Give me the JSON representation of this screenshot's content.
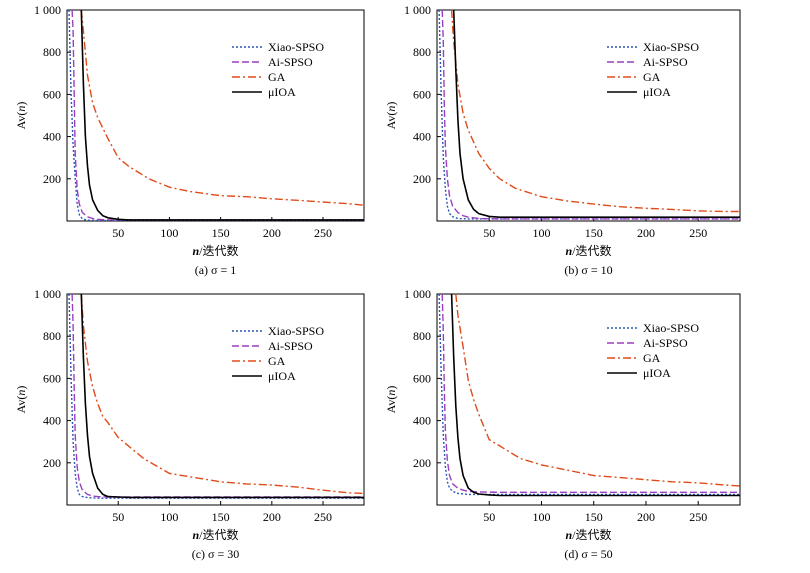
{
  "chart_data": [
    {
      "type": "line",
      "caption": "(a) σ = 1",
      "ylabel": "Av(n)",
      "xlabel": "n/迭代数",
      "xlim": [
        0,
        290
      ],
      "ylim": [
        0,
        1000
      ],
      "xticks": [
        "50",
        "100",
        "150",
        "200",
        "250"
      ],
      "yticks": [
        "200",
        "400",
        "600",
        "800",
        "1 000"
      ],
      "series": [
        {
          "name": "Xiao-SPSO",
          "color": "#2a55b8",
          "dash": "2,2",
          "x": [
            2,
            4,
            6,
            8,
            10,
            12,
            15,
            20,
            30,
            290
          ],
          "y": [
            1000,
            600,
            360,
            200,
            80,
            30,
            10,
            4,
            2,
            2
          ]
        },
        {
          "name": "Ai-SPSO",
          "color": "#9b3fc2",
          "dash": "7,3",
          "x": [
            5,
            6,
            7,
            8,
            10,
            12,
            15,
            20,
            25,
            30,
            40,
            290
          ],
          "y": [
            1000,
            900,
            600,
            320,
            150,
            80,
            40,
            20,
            12,
            8,
            5,
            5
          ]
        },
        {
          "name": "GA",
          "color": "#e04b1a",
          "dash": "8,3,2,3",
          "x": [
            14,
            16,
            20,
            25,
            30,
            40,
            50,
            60,
            70,
            80,
            100,
            120,
            150,
            175,
            200,
            225,
            250,
            275,
            290
          ],
          "y": [
            1000,
            900,
            690,
            560,
            490,
            390,
            300,
            260,
            230,
            200,
            160,
            140,
            120,
            115,
            105,
            98,
            90,
            82,
            75
          ]
        },
        {
          "name": "μIOA",
          "color": "#000000",
          "dash": "",
          "x": [
            14,
            16,
            18,
            20,
            22,
            25,
            30,
            35,
            40,
            50,
            60,
            290
          ],
          "y": [
            1000,
            650,
            400,
            260,
            170,
            100,
            50,
            25,
            15,
            8,
            5,
            5
          ]
        }
      ]
    },
    {
      "type": "line",
      "caption": "(b) σ = 10",
      "ylabel": "Av(n)",
      "xlabel": "n/迭代数",
      "xlim": [
        0,
        290
      ],
      "ylim": [
        0,
        1000
      ],
      "xticks": [
        "50",
        "100",
        "150",
        "200",
        "250"
      ],
      "yticks": [
        "200",
        "400",
        "600",
        "800",
        "1 000"
      ],
      "series": [
        {
          "name": "Xiao-SPSO",
          "color": "#2a55b8",
          "dash": "2,2",
          "x": [
            2,
            4,
            6,
            8,
            10,
            12,
            15,
            20,
            30,
            50,
            290
          ],
          "y": [
            1000,
            600,
            300,
            150,
            70,
            35,
            20,
            12,
            10,
            10,
            10
          ]
        },
        {
          "name": "Ai-SPSO",
          "color": "#9b3fc2",
          "dash": "7,3",
          "x": [
            5,
            6,
            7,
            8,
            10,
            12,
            15,
            20,
            25,
            30,
            40,
            60,
            290
          ],
          "y": [
            1000,
            850,
            550,
            350,
            200,
            120,
            70,
            40,
            25,
            18,
            12,
            10,
            10
          ]
        },
        {
          "name": "GA",
          "color": "#e04b1a",
          "dash": "8,3,2,3",
          "x": [
            14,
            16,
            20,
            25,
            30,
            40,
            50,
            60,
            75,
            100,
            125,
            150,
            175,
            200,
            225,
            250,
            275,
            290
          ],
          "y": [
            1000,
            850,
            650,
            510,
            430,
            320,
            250,
            200,
            155,
            115,
            95,
            80,
            68,
            60,
            55,
            48,
            45,
            45
          ]
        },
        {
          "name": "μIOA",
          "color": "#000000",
          "dash": "",
          "x": [
            16,
            18,
            20,
            22,
            25,
            30,
            35,
            40,
            50,
            60,
            290
          ],
          "y": [
            1000,
            720,
            480,
            320,
            200,
            100,
            55,
            35,
            22,
            18,
            18
          ]
        }
      ]
    },
    {
      "type": "line",
      "caption": "(c) σ = 30",
      "ylabel": "Av(n)",
      "xlabel": "n/迭代数",
      "xlim": [
        0,
        290
      ],
      "ylim": [
        0,
        1000
      ],
      "xticks": [
        "50",
        "100",
        "150",
        "200",
        "250"
      ],
      "yticks": [
        "200",
        "400",
        "600",
        "800",
        "1 000"
      ],
      "series": [
        {
          "name": "Xiao-SPSO",
          "color": "#2a55b8",
          "dash": "2,2",
          "x": [
            2,
            4,
            6,
            8,
            10,
            12,
            15,
            20,
            30,
            60,
            290
          ],
          "y": [
            1000,
            600,
            300,
            150,
            80,
            50,
            40,
            35,
            32,
            32,
            32
          ]
        },
        {
          "name": "Ai-SPSO",
          "color": "#9b3fc2",
          "dash": "7,3",
          "x": [
            5,
            6,
            7,
            8,
            10,
            12,
            15,
            20,
            25,
            30,
            40,
            290
          ],
          "y": [
            1000,
            850,
            550,
            330,
            180,
            110,
            70,
            50,
            42,
            40,
            38,
            38
          ]
        },
        {
          "name": "GA",
          "color": "#e04b1a",
          "dash": "8,3,2,3",
          "x": [
            14,
            16,
            20,
            25,
            30,
            35,
            40,
            50,
            60,
            75,
            100,
            125,
            150,
            175,
            200,
            225,
            250,
            275,
            290
          ],
          "y": [
            1000,
            850,
            680,
            560,
            480,
            420,
            390,
            320,
            280,
            220,
            150,
            130,
            110,
            100,
            95,
            85,
            70,
            58,
            55
          ]
        },
        {
          "name": "μIOA",
          "color": "#000000",
          "dash": "",
          "x": [
            14,
            16,
            18,
            20,
            22,
            25,
            30,
            35,
            40,
            50,
            60,
            290
          ],
          "y": [
            1000,
            700,
            480,
            330,
            230,
            150,
            80,
            50,
            40,
            38,
            36,
            36
          ]
        }
      ]
    },
    {
      "type": "line",
      "caption": "(d) σ = 50",
      "ylabel": "Av(n)",
      "xlabel": "n/迭代数",
      "xlim": [
        0,
        290
      ],
      "ylim": [
        0,
        1000
      ],
      "xticks": [
        "50",
        "100",
        "150",
        "200",
        "250"
      ],
      "yticks": [
        "200",
        "400",
        "600",
        "800",
        "1 000"
      ],
      "series": [
        {
          "name": "Xiao-SPSO",
          "color": "#2a55b8",
          "dash": "2,2",
          "x": [
            2,
            4,
            6,
            8,
            10,
            12,
            15,
            20,
            30,
            60,
            290
          ],
          "y": [
            1000,
            620,
            330,
            180,
            110,
            80,
            65,
            55,
            50,
            50,
            50
          ]
        },
        {
          "name": "Ai-SPSO",
          "color": "#9b3fc2",
          "dash": "7,3",
          "x": [
            5,
            6,
            7,
            8,
            10,
            12,
            15,
            20,
            25,
            30,
            40,
            60,
            290
          ],
          "y": [
            1000,
            820,
            550,
            350,
            210,
            140,
            100,
            80,
            70,
            65,
            62,
            60,
            60
          ]
        },
        {
          "name": "GA",
          "color": "#e04b1a",
          "dash": "8,3,2,3",
          "x": [
            18,
            20,
            25,
            30,
            35,
            40,
            50,
            60,
            70,
            80,
            100,
            125,
            150,
            175,
            200,
            225,
            250,
            275,
            290
          ],
          "y": [
            1000,
            900,
            750,
            590,
            500,
            430,
            310,
            280,
            250,
            220,
            190,
            165,
            140,
            130,
            120,
            110,
            105,
            95,
            90
          ]
        },
        {
          "name": "μIOA",
          "color": "#000000",
          "dash": "",
          "x": [
            14,
            16,
            18,
            20,
            22,
            25,
            30,
            35,
            40,
            50,
            60,
            290
          ],
          "y": [
            1000,
            700,
            470,
            320,
            220,
            140,
            80,
            60,
            52,
            48,
            45,
            45
          ]
        }
      ]
    }
  ]
}
